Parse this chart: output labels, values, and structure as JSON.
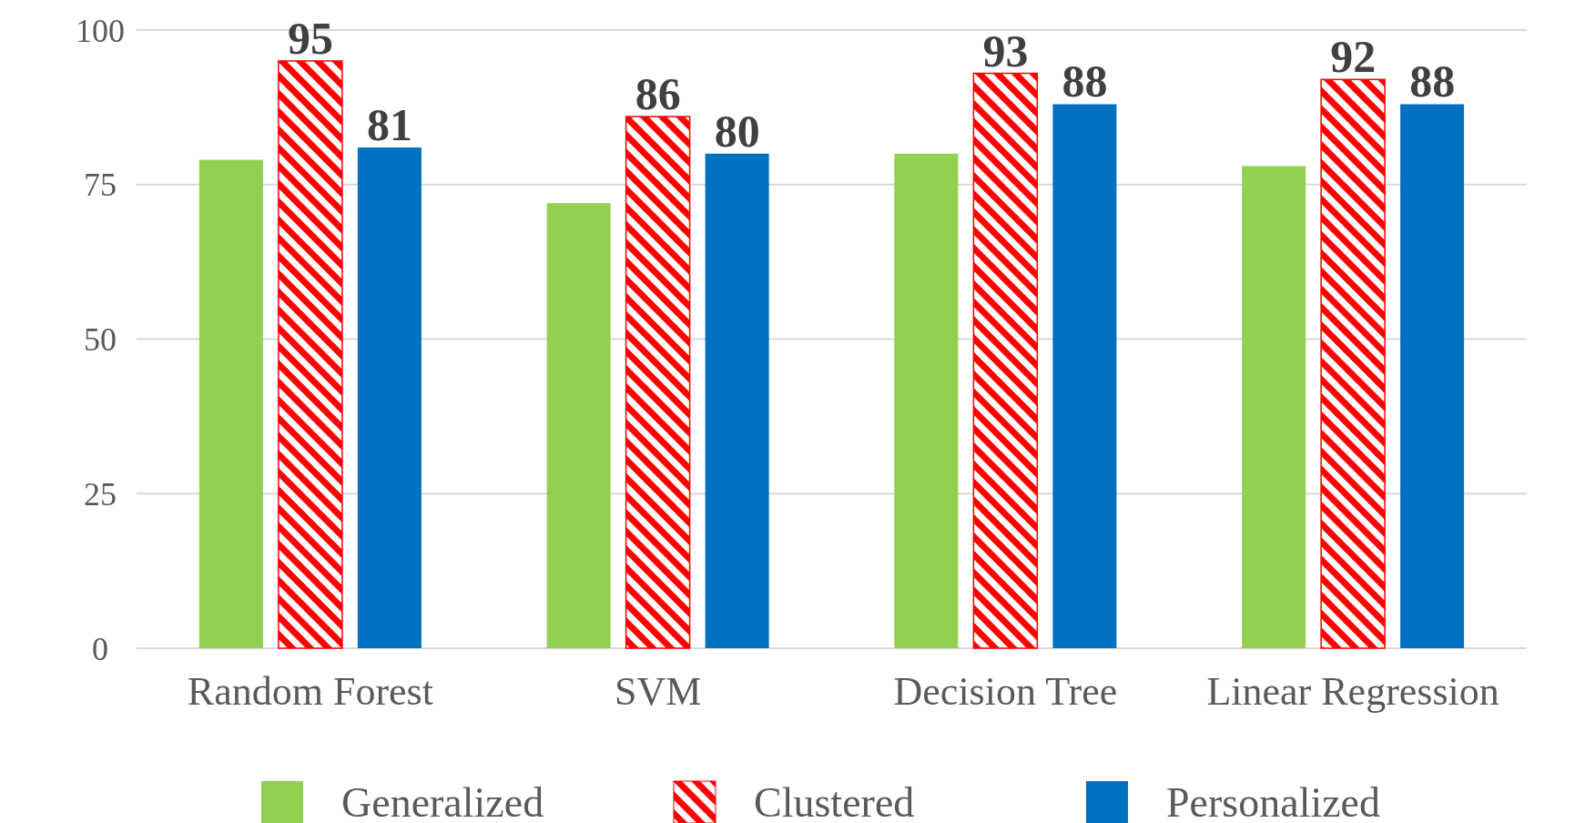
{
  "chart_data": {
    "type": "bar",
    "categories": [
      "Random Forest",
      "SVM",
      "Decision Tree",
      "Linear Regression"
    ],
    "series": [
      {
        "name": "Generalized",
        "color": "#92d050",
        "values": [
          79,
          72,
          80,
          78
        ]
      },
      {
        "name": "Clustered",
        "color": "#ff0000",
        "values": [
          95,
          86,
          93,
          92
        ],
        "value_labels": [
          "95",
          "86",
          "93",
          "92"
        ]
      },
      {
        "name": "Personalized",
        "color": "#0070c0",
        "values": [
          81,
          80,
          88,
          88
        ],
        "value_labels": [
          "81",
          "80",
          "88",
          "88"
        ]
      }
    ],
    "ylim": [
      0,
      100
    ],
    "yticks": [
      0,
      25,
      50,
      75,
      100
    ],
    "grid": "y",
    "legend": "bottom"
  }
}
